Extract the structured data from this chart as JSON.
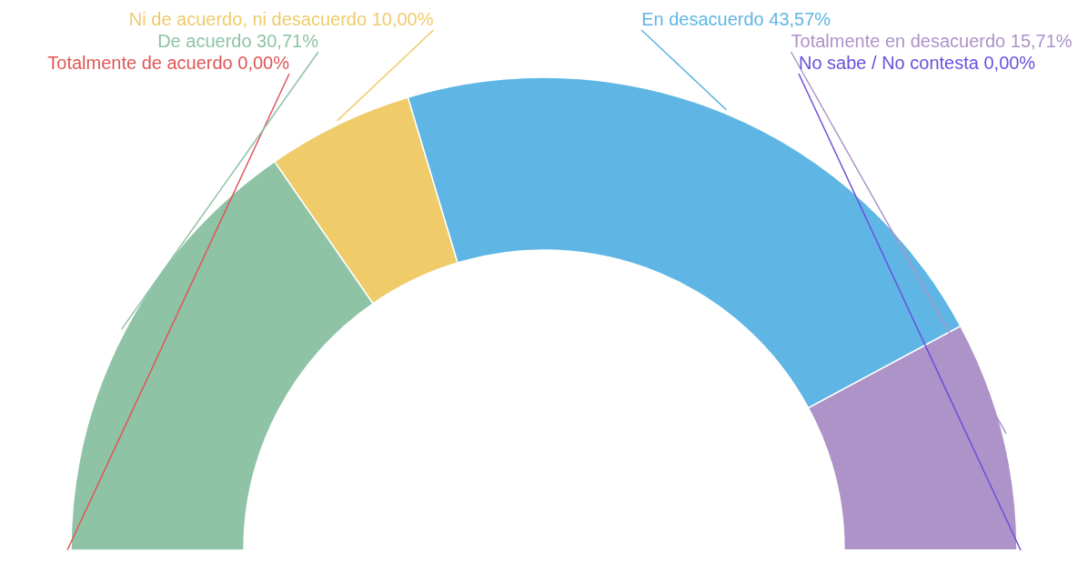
{
  "chart_data": {
    "type": "donut",
    "categories": [
      "Totalmente de acuerdo",
      "De acuerdo",
      "Ni de acuerdo, ni desacuerdo",
      "En desacuerdo",
      "Totalmente en desacuerdo",
      "No sabe / No contesta"
    ],
    "values": [
      0,
      30.71,
      10,
      43.57,
      15.71,
      0
    ],
    "value_labels": [
      "0,00%",
      "30,71%",
      "10,00%",
      "43,57%",
      "15,71%",
      "0,00%"
    ],
    "colors": [
      "#e05656",
      "#8ec3a6",
      "#efcb6a",
      "#5fb6e4",
      "#ad93c8",
      "#6b50dc"
    ]
  }
}
